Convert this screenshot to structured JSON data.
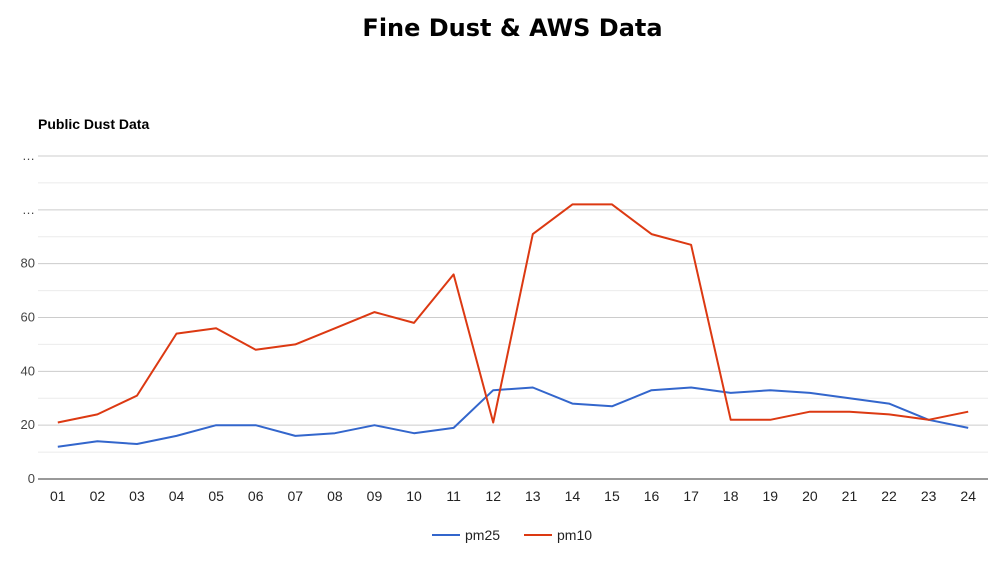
{
  "page": {
    "title": "Fine Dust & AWS Data"
  },
  "chart_data": {
    "type": "line",
    "title": "Public Dust Data",
    "xlabel": "",
    "ylabel": "",
    "categories": [
      "01",
      "02",
      "03",
      "04",
      "05",
      "06",
      "07",
      "08",
      "09",
      "10",
      "11",
      "12",
      "13",
      "14",
      "15",
      "16",
      "17",
      "18",
      "19",
      "20",
      "21",
      "22",
      "23",
      "24"
    ],
    "series": [
      {
        "name": "pm25",
        "color": "#3366cc",
        "values": [
          12,
          14,
          13,
          16,
          20,
          20,
          16,
          17,
          20,
          17,
          19,
          33,
          34,
          28,
          27,
          33,
          34,
          32,
          33,
          32,
          30,
          28,
          22,
          19
        ]
      },
      {
        "name": "pm10",
        "color": "#dc3912",
        "values": [
          21,
          24,
          31,
          54,
          56,
          48,
          50,
          56,
          62,
          58,
          76,
          21,
          91,
          102,
          102,
          91,
          87,
          22,
          22,
          25,
          25,
          24,
          22,
          25
        ]
      }
    ],
    "ylim": [
      0,
      120
    ],
    "y_ticks": [
      {
        "value": 0,
        "label": "0"
      },
      {
        "value": 20,
        "label": "20"
      },
      {
        "value": 40,
        "label": "40"
      },
      {
        "value": 60,
        "label": "60"
      },
      {
        "value": 80,
        "label": "80"
      },
      {
        "value": 100,
        "label": "…"
      },
      {
        "value": 120,
        "label": "…"
      }
    ],
    "grid": true,
    "legend_position": "bottom",
    "colors": {
      "gridline": "#cccccc",
      "minor_gridline": "#ebebeb",
      "baseline": "#333333"
    }
  }
}
